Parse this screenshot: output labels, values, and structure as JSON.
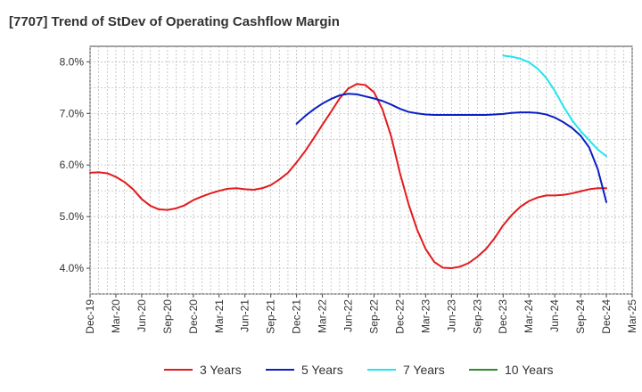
{
  "chart_data": {
    "type": "line",
    "title": "[7707]  Trend of StDev of Operating Cashflow Margin",
    "xlabel": "",
    "ylabel": "",
    "x_ticks": [
      "Dec-19",
      "Mar-20",
      "Jun-20",
      "Sep-20",
      "Dec-20",
      "Mar-21",
      "Jun-21",
      "Sep-21",
      "Dec-21",
      "Mar-22",
      "Jun-22",
      "Sep-22",
      "Dec-22",
      "Mar-23",
      "Jun-23",
      "Sep-23",
      "Dec-23",
      "Mar-24",
      "Jun-24",
      "Sep-24",
      "Dec-24",
      "Mar-25"
    ],
    "y_ticks": [
      "4.0%",
      "5.0%",
      "6.0%",
      "7.0%",
      "8.0%"
    ],
    "ylim": [
      3.5,
      8.3
    ],
    "y_unit": "%",
    "grid": true,
    "legend_position": "bottom",
    "series": [
      {
        "name": "3 Years",
        "color": "#e31a1c",
        "x": [
          "Dec-19",
          "Jan-20",
          "Feb-20",
          "Mar-20",
          "Apr-20",
          "May-20",
          "Jun-20",
          "Jul-20",
          "Aug-20",
          "Sep-20",
          "Oct-20",
          "Nov-20",
          "Dec-20",
          "Jan-21",
          "Feb-21",
          "Mar-21",
          "Apr-21",
          "May-21",
          "Jun-21",
          "Jul-21",
          "Aug-21",
          "Sep-21",
          "Oct-21",
          "Nov-21",
          "Dec-21",
          "Jan-22",
          "Feb-22",
          "Mar-22",
          "Apr-22",
          "May-22",
          "Jun-22",
          "Jul-22",
          "Aug-22",
          "Sep-22",
          "Oct-22",
          "Nov-22",
          "Dec-22",
          "Jan-23",
          "Feb-23",
          "Mar-23",
          "Apr-23",
          "May-23",
          "Jun-23",
          "Jul-23",
          "Aug-23",
          "Sep-23",
          "Oct-23",
          "Nov-23",
          "Dec-23",
          "Jan-24",
          "Feb-24",
          "Mar-24",
          "Apr-24",
          "May-24",
          "Jun-24",
          "Jul-24",
          "Aug-24",
          "Sep-24",
          "Oct-24",
          "Nov-24",
          "Dec-24"
        ],
        "values": [
          5.85,
          5.86,
          5.84,
          5.77,
          5.67,
          5.53,
          5.34,
          5.21,
          5.14,
          5.13,
          5.16,
          5.22,
          5.32,
          5.39,
          5.45,
          5.5,
          5.54,
          5.55,
          5.53,
          5.52,
          5.55,
          5.61,
          5.72,
          5.85,
          6.05,
          6.27,
          6.52,
          6.78,
          7.03,
          7.29,
          7.48,
          7.57,
          7.55,
          7.41,
          7.07,
          6.55,
          5.85,
          5.25,
          4.75,
          4.37,
          4.12,
          4.01,
          4.0,
          4.03,
          4.1,
          4.22,
          4.37,
          4.58,
          4.83,
          5.03,
          5.19,
          5.3,
          5.37,
          5.41,
          5.41,
          5.42,
          5.45,
          5.49,
          5.53,
          5.55,
          5.55
        ]
      },
      {
        "name": "5 Years",
        "color": "#0a1fc4",
        "x": [
          "Dec-21",
          "Jan-22",
          "Feb-22",
          "Mar-22",
          "Apr-22",
          "May-22",
          "Jun-22",
          "Jul-22",
          "Aug-22",
          "Sep-22",
          "Oct-22",
          "Nov-22",
          "Dec-22",
          "Jan-23",
          "Feb-23",
          "Mar-23",
          "Apr-23",
          "May-23",
          "Jun-23",
          "Jul-23",
          "Aug-23",
          "Sep-23",
          "Oct-23",
          "Nov-23",
          "Dec-23",
          "Jan-24",
          "Feb-24",
          "Mar-24",
          "Apr-24",
          "May-24",
          "Jun-24",
          "Jul-24",
          "Aug-24",
          "Sep-24",
          "Oct-24",
          "Nov-24",
          "Dec-24"
        ],
        "values": [
          6.8,
          6.95,
          7.08,
          7.19,
          7.28,
          7.35,
          7.38,
          7.37,
          7.33,
          7.29,
          7.24,
          7.17,
          7.09,
          7.03,
          7.0,
          6.98,
          6.97,
          6.97,
          6.97,
          6.97,
          6.97,
          6.97,
          6.97,
          6.98,
          6.99,
          7.01,
          7.02,
          7.02,
          7.01,
          6.98,
          6.92,
          6.83,
          6.72,
          6.57,
          6.34,
          5.92,
          5.28
        ]
      },
      {
        "name": "7 Years",
        "color": "#22e5ee",
        "x": [
          "Dec-23",
          "Jan-24",
          "Feb-24",
          "Mar-24",
          "Apr-24",
          "May-24",
          "Jun-24",
          "Jul-24",
          "Aug-24",
          "Sep-24",
          "Oct-24",
          "Nov-24",
          "Dec-24"
        ],
        "values": [
          8.12,
          8.1,
          8.06,
          7.99,
          7.87,
          7.69,
          7.44,
          7.14,
          6.87,
          6.66,
          6.48,
          6.3,
          6.17
        ]
      },
      {
        "name": "10 Years",
        "color": "#2e8b2e",
        "x": [],
        "values": []
      }
    ]
  }
}
